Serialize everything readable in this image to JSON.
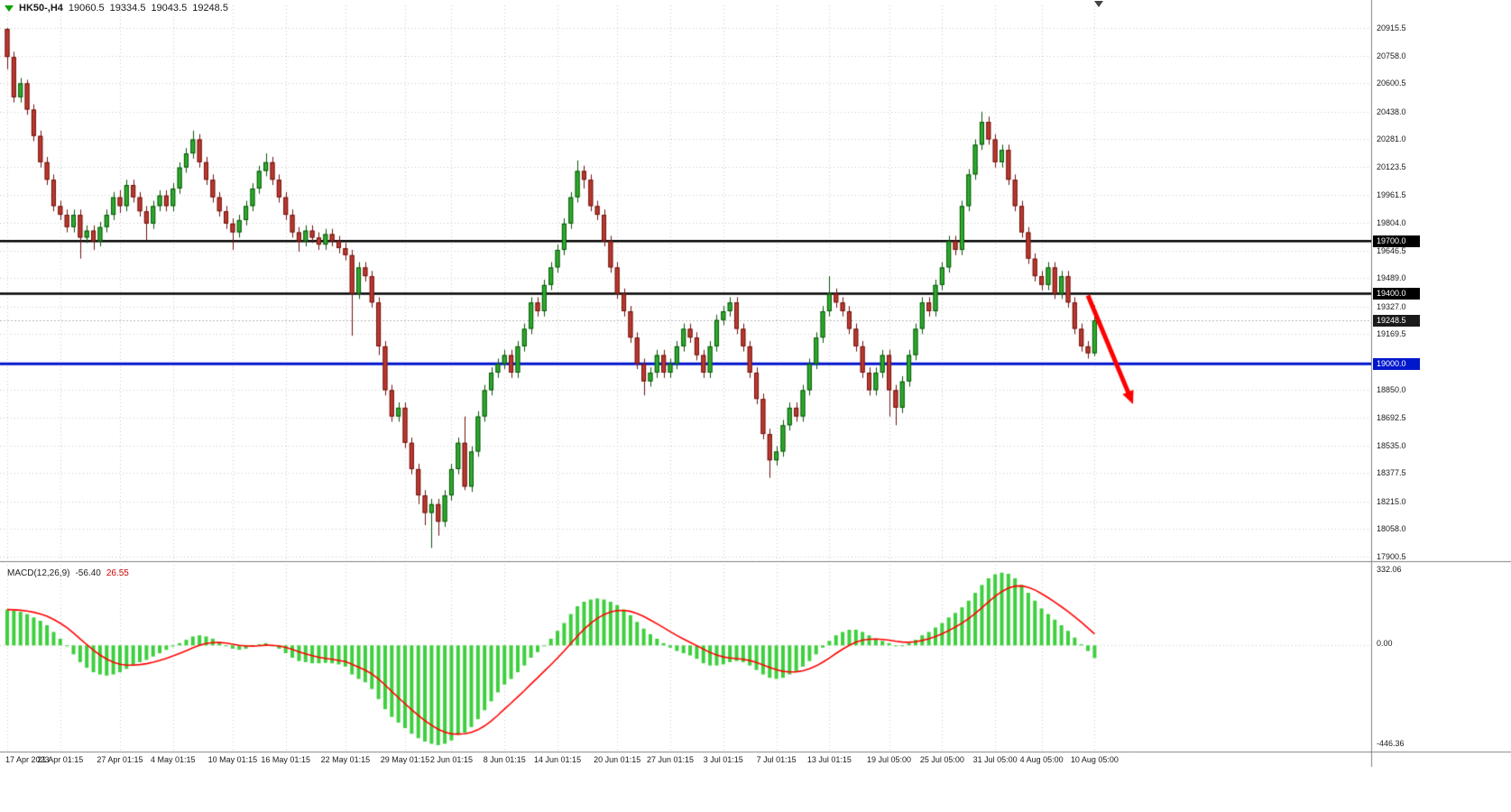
{
  "header": {
    "symbol_period": "HK50-,H4",
    "open": "19060.5",
    "high": "19334.5",
    "low": "19043.5",
    "close": "19248.5"
  },
  "macd_panel": {
    "indicator_label": "MACD(12,26,9)",
    "macd_value": "-56.40",
    "signal_value": "26.55",
    "axis_max": "332.06",
    "axis_zero": "0.00",
    "axis_min": "-446.36"
  },
  "badges": [
    {
      "text": "19700.0",
      "price": 19700.0,
      "bg": "#000000"
    },
    {
      "text": "19400.0",
      "price": 19400.0,
      "bg": "#000000"
    },
    {
      "text": "19248.5",
      "price": 19248.5,
      "bg": "#1a1a1a"
    },
    {
      "text": "19000.0",
      "price": 19000.0,
      "bg": "#0018cc"
    }
  ],
  "colors": {
    "bull_fill": "#2dad2d",
    "bull_stroke": "#0a520a",
    "bear_fill": "#bb3a30",
    "bear_stroke": "#6e120e",
    "grid": "#c9c9c9",
    "separator": "#808080",
    "hline_black": "#000000",
    "hline_blue": "#0014cc",
    "bid_line": "#b8b8b8",
    "macd_bar": "#3ecf3e",
    "macd_signal": "#ff0000",
    "arrow": "#ff0000"
  },
  "chart_data": {
    "type": "candlestick",
    "symbol": "HK50-",
    "timeframe": "H4",
    "current_bar": {
      "open": 19060.5,
      "high": 19334.5,
      "low": 19043.5,
      "close": 19248.5
    },
    "price_axis": {
      "max": 20915.5,
      "min": 17900.5,
      "ticks": [
        20915.5,
        20758.0,
        20600.5,
        20438.0,
        20281.0,
        20123.5,
        19961.5,
        19804.0,
        19646.5,
        19489.0,
        19327.0,
        19169.5,
        18850.0,
        18692.5,
        18535.0,
        18377.5,
        18215.0,
        18058.0,
        17900.5
      ]
    },
    "hlines": [
      {
        "price": 19700.0,
        "color": "black",
        "width": 2.6
      },
      {
        "price": 19400.0,
        "color": "black",
        "width": 2.6
      },
      {
        "price": 19000.0,
        "color": "blue",
        "width": 3
      }
    ],
    "bid_line_price": 19248.5,
    "x_ticks": [
      {
        "index": 0,
        "label": "17 Apr 2023"
      },
      {
        "index": 8,
        "label": "21 Apr 01:15"
      },
      {
        "index": 17,
        "label": "27 Apr 01:15"
      },
      {
        "index": 25,
        "label": "4 May 01:15"
      },
      {
        "index": 34,
        "label": "10 May 01:15"
      },
      {
        "index": 42,
        "label": "16 May 01:15"
      },
      {
        "index": 51,
        "label": "22 May 01:15"
      },
      {
        "index": 60,
        "label": "29 May 01:15"
      },
      {
        "index": 67,
        "label": "2 Jun 01:15"
      },
      {
        "index": 75,
        "label": "8 Jun 01:15"
      },
      {
        "index": 83,
        "label": "14 Jun 01:15"
      },
      {
        "index": 92,
        "label": "20 Jun 01:15"
      },
      {
        "index": 100,
        "label": "27 Jun 01:15"
      },
      {
        "index": 108,
        "label": "3 Jul 01:15"
      },
      {
        "index": 116,
        "label": "7 Jul 01:15"
      },
      {
        "index": 124,
        "label": "13 Jul 01:15"
      },
      {
        "index": 133,
        "label": "19 Jul 05:00"
      },
      {
        "index": 141,
        "label": "25 Jul 05:00"
      },
      {
        "index": 149,
        "label": "31 Jul 05:00"
      },
      {
        "index": 156,
        "label": "4 Aug 05:00"
      },
      {
        "index": 164,
        "label": "10 Aug 05:00"
      }
    ],
    "candles": [
      [
        20910,
        20915.5,
        20680,
        20750
      ],
      [
        20750,
        20780,
        20490,
        20520
      ],
      [
        20520,
        20630,
        20490,
        20600
      ],
      [
        20600,
        20620,
        20420,
        20450
      ],
      [
        20450,
        20480,
        20270,
        20300
      ],
      [
        20300,
        20330,
        20120,
        20150
      ],
      [
        20150,
        20180,
        20020,
        20050
      ],
      [
        20050,
        20080,
        19870,
        19900
      ],
      [
        19900,
        19930,
        19820,
        19850
      ],
      [
        19850,
        19880,
        19750,
        19780
      ],
      [
        19780,
        19880,
        19750,
        19850
      ],
      [
        19850,
        19880,
        19600,
        19720
      ],
      [
        19720,
        19790,
        19690,
        19760
      ],
      [
        19760,
        19790,
        19650,
        19700
      ],
      [
        19700,
        19810,
        19670,
        19780
      ],
      [
        19780,
        19880,
        19750,
        19850
      ],
      [
        19850,
        19980,
        19820,
        19950
      ],
      [
        19950,
        19990,
        19860,
        19900
      ],
      [
        19900,
        20050,
        19870,
        20020
      ],
      [
        20020,
        20050,
        19920,
        19950
      ],
      [
        19950,
        19980,
        19840,
        19870
      ],
      [
        19870,
        19900,
        19700,
        19800
      ],
      [
        19800,
        19930,
        19770,
        19900
      ],
      [
        19900,
        19990,
        19870,
        19960
      ],
      [
        19960,
        19990,
        19870,
        19900
      ],
      [
        19900,
        20030,
        19870,
        20000
      ],
      [
        20000,
        20150,
        19970,
        20120
      ],
      [
        20120,
        20230,
        20090,
        20200
      ],
      [
        20200,
        20330,
        20170,
        20280
      ],
      [
        20280,
        20310,
        20120,
        20150
      ],
      [
        20150,
        20180,
        20020,
        20050
      ],
      [
        20050,
        20080,
        19920,
        19950
      ],
      [
        19950,
        19980,
        19840,
        19870
      ],
      [
        19870,
        19900,
        19770,
        19800
      ],
      [
        19800,
        19830,
        19650,
        19750
      ],
      [
        19750,
        19850,
        19720,
        19820
      ],
      [
        19820,
        19930,
        19790,
        19900
      ],
      [
        19900,
        20030,
        19870,
        20000
      ],
      [
        20000,
        20130,
        19970,
        20100
      ],
      [
        20100,
        20200,
        20070,
        20150
      ],
      [
        20150,
        20180,
        20020,
        20050
      ],
      [
        20050,
        20080,
        19920,
        19950
      ],
      [
        19950,
        19980,
        19820,
        19850
      ],
      [
        19850,
        19880,
        19720,
        19750
      ],
      [
        19750,
        19780,
        19640,
        19700
      ],
      [
        19700,
        19790,
        19670,
        19760
      ],
      [
        19760,
        19790,
        19690,
        19720
      ],
      [
        19720,
        19750,
        19650,
        19680
      ],
      [
        19680,
        19770,
        19650,
        19740
      ],
      [
        19740,
        19770,
        19670,
        19700
      ],
      [
        19700,
        19730,
        19630,
        19660
      ],
      [
        19660,
        19690,
        19590,
        19620
      ],
      [
        19620,
        19650,
        19160,
        19400
      ],
      [
        19400,
        19580,
        19370,
        19550
      ],
      [
        19550,
        19580,
        19470,
        19500
      ],
      [
        19500,
        19530,
        19320,
        19350
      ],
      [
        19350,
        19380,
        19050,
        19100
      ],
      [
        19100,
        19130,
        18820,
        18850
      ],
      [
        18850,
        18880,
        18670,
        18700
      ],
      [
        18700,
        18780,
        18670,
        18750
      ],
      [
        18750,
        18780,
        18520,
        18550
      ],
      [
        18550,
        18580,
        18370,
        18400
      ],
      [
        18400,
        18430,
        18200,
        18250
      ],
      [
        18250,
        18280,
        18080,
        18150
      ],
      [
        18150,
        18230,
        17950,
        18200
      ],
      [
        18200,
        18230,
        18020,
        18100
      ],
      [
        18100,
        18280,
        18070,
        18250
      ],
      [
        18250,
        18430,
        18220,
        18400
      ],
      [
        18400,
        18580,
        18370,
        18550
      ],
      [
        18550,
        18700,
        18280,
        18300
      ],
      [
        18300,
        18530,
        18270,
        18500
      ],
      [
        18500,
        18730,
        18470,
        18700
      ],
      [
        18700,
        18880,
        18670,
        18850
      ],
      [
        18850,
        18980,
        18820,
        18950
      ],
      [
        18950,
        19030,
        18920,
        19000
      ],
      [
        19000,
        19080,
        18970,
        19050
      ],
      [
        19050,
        19080,
        18920,
        18950
      ],
      [
        18950,
        19130,
        18920,
        19100
      ],
      [
        19100,
        19230,
        19070,
        19200
      ],
      [
        19200,
        19380,
        19170,
        19350
      ],
      [
        19350,
        19380,
        19270,
        19300
      ],
      [
        19300,
        19480,
        19270,
        19450
      ],
      [
        19450,
        19580,
        19420,
        19550
      ],
      [
        19550,
        19680,
        19520,
        19650
      ],
      [
        19650,
        19830,
        19620,
        19800
      ],
      [
        19800,
        19980,
        19770,
        19950
      ],
      [
        19950,
        20160,
        19920,
        20100
      ],
      [
        20100,
        20130,
        20000,
        20050
      ],
      [
        20050,
        20080,
        19870,
        19900
      ],
      [
        19900,
        19930,
        19820,
        19850
      ],
      [
        19850,
        19880,
        19670,
        19700
      ],
      [
        19700,
        19730,
        19520,
        19550
      ],
      [
        19550,
        19580,
        19370,
        19400
      ],
      [
        19400,
        19430,
        19270,
        19300
      ],
      [
        19300,
        19330,
        19120,
        19150
      ],
      [
        19150,
        19180,
        18970,
        19000
      ],
      [
        19000,
        19030,
        18820,
        18900
      ],
      [
        18900,
        18980,
        18870,
        18950
      ],
      [
        18950,
        19080,
        18920,
        19050
      ],
      [
        19050,
        19080,
        18920,
        18950
      ],
      [
        18950,
        19030,
        18920,
        19000
      ],
      [
        19000,
        19130,
        18970,
        19100
      ],
      [
        19100,
        19230,
        19070,
        19200
      ],
      [
        19200,
        19230,
        19120,
        19150
      ],
      [
        19150,
        19180,
        19020,
        19050
      ],
      [
        19050,
        19080,
        18920,
        18950
      ],
      [
        18950,
        19130,
        18920,
        19100
      ],
      [
        19100,
        19280,
        19070,
        19250
      ],
      [
        19250,
        19330,
        19220,
        19300
      ],
      [
        19300,
        19380,
        19270,
        19350
      ],
      [
        19350,
        19380,
        19170,
        19200
      ],
      [
        19200,
        19230,
        19070,
        19100
      ],
      [
        19100,
        19130,
        18920,
        18950
      ],
      [
        18950,
        18980,
        18770,
        18800
      ],
      [
        18800,
        18830,
        18570,
        18600
      ],
      [
        18600,
        18630,
        18350,
        18450
      ],
      [
        18450,
        18530,
        18420,
        18500
      ],
      [
        18500,
        18680,
        18470,
        18650
      ],
      [
        18650,
        18780,
        18620,
        18750
      ],
      [
        18750,
        18780,
        18670,
        18700
      ],
      [
        18700,
        18880,
        18670,
        18850
      ],
      [
        18850,
        19030,
        18820,
        19000
      ],
      [
        19000,
        19180,
        18970,
        19150
      ],
      [
        19150,
        19330,
        19120,
        19300
      ],
      [
        19300,
        19500,
        19270,
        19400
      ],
      [
        19400,
        19430,
        19320,
        19350
      ],
      [
        19350,
        19380,
        19270,
        19300
      ],
      [
        19300,
        19330,
        19170,
        19200
      ],
      [
        19200,
        19230,
        19070,
        19100
      ],
      [
        19100,
        19130,
        18920,
        18950
      ],
      [
        18950,
        18980,
        18820,
        18850
      ],
      [
        18850,
        18980,
        18820,
        18950
      ],
      [
        18950,
        19080,
        18920,
        19050
      ],
      [
        19050,
        19080,
        18700,
        18850
      ],
      [
        18850,
        18880,
        18650,
        18750
      ],
      [
        18750,
        18930,
        18720,
        18900
      ],
      [
        18900,
        19080,
        18870,
        19050
      ],
      [
        19050,
        19230,
        19020,
        19200
      ],
      [
        19200,
        19380,
        19170,
        19350
      ],
      [
        19350,
        19380,
        19270,
        19300
      ],
      [
        19300,
        19480,
        19270,
        19450
      ],
      [
        19450,
        19580,
        19420,
        19550
      ],
      [
        19550,
        19730,
        19520,
        19700
      ],
      [
        19700,
        19730,
        19620,
        19650
      ],
      [
        19650,
        19930,
        19620,
        19900
      ],
      [
        19900,
        20110,
        19870,
        20080
      ],
      [
        20080,
        20280,
        20050,
        20250
      ],
      [
        20250,
        20438,
        20220,
        20380
      ],
      [
        20380,
        20410,
        20250,
        20280
      ],
      [
        20280,
        20310,
        20120,
        20150
      ],
      [
        20150,
        20250,
        20120,
        20220
      ],
      [
        20220,
        20250,
        20020,
        20050
      ],
      [
        20050,
        20080,
        19870,
        19900
      ],
      [
        19900,
        19930,
        19720,
        19750
      ],
      [
        19750,
        19780,
        19570,
        19600
      ],
      [
        19600,
        19630,
        19470,
        19500
      ],
      [
        19500,
        19530,
        19420,
        19450
      ],
      [
        19450,
        19580,
        19420,
        19550
      ],
      [
        19550,
        19580,
        19370,
        19400
      ],
      [
        19400,
        19530,
        19370,
        19500
      ],
      [
        19500,
        19530,
        19320,
        19350
      ],
      [
        19350,
        19380,
        19170,
        19200
      ],
      [
        19200,
        19230,
        19070,
        19100
      ],
      [
        19100,
        19130,
        19030,
        19060.5
      ],
      [
        19060.5,
        19334.5,
        19043.5,
        19248.5
      ]
    ],
    "macd": {
      "label": "MACD(12,26,9)",
      "scale_max": 332.06,
      "scale_min": -446.36,
      "signal_period": 9,
      "histogram": [
        160,
        155,
        150,
        140,
        125,
        110,
        90,
        60,
        30,
        0,
        -40,
        -75,
        -100,
        -120,
        -130,
        -135,
        -130,
        -120,
        -105,
        -90,
        -75,
        -65,
        -50,
        -35,
        -20,
        -5,
        10,
        25,
        40,
        45,
        40,
        30,
        15,
        0,
        -15,
        -20,
        -15,
        -5,
        5,
        10,
        0,
        -15,
        -35,
        -55,
        -70,
        -75,
        -80,
        -80,
        -78,
        -80,
        -85,
        -95,
        -130,
        -150,
        -165,
        -195,
        -240,
        -285,
        -320,
        -345,
        -370,
        -395,
        -415,
        -430,
        -440,
        -446,
        -440,
        -425,
        -400,
        -390,
        -365,
        -330,
        -290,
        -250,
        -210,
        -175,
        -150,
        -120,
        -90,
        -55,
        -30,
        0,
        30,
        65,
        100,
        140,
        175,
        195,
        205,
        210,
        205,
        195,
        180,
        160,
        135,
        105,
        75,
        50,
        30,
        10,
        -10,
        -25,
        -35,
        -45,
        -60,
        -80,
        -90,
        -90,
        -85,
        -75,
        -70,
        -75,
        -90,
        -110,
        -130,
        -145,
        -150,
        -145,
        -130,
        -115,
        -95,
        -70,
        -40,
        -10,
        20,
        45,
        60,
        70,
        70,
        60,
        45,
        30,
        20,
        10,
        0,
        0,
        10,
        25,
        45,
        60,
        80,
        100,
        125,
        145,
        170,
        200,
        235,
        270,
        300,
        318,
        325,
        320,
        300,
        270,
        235,
        200,
        165,
        140,
        115,
        90,
        65,
        35,
        5,
        -25,
        -56.4
      ]
    },
    "arrow": {
      "start": {
        "index": 163,
        "price": 19390
      },
      "end": {
        "index": 169.8,
        "price": 18770
      }
    }
  }
}
